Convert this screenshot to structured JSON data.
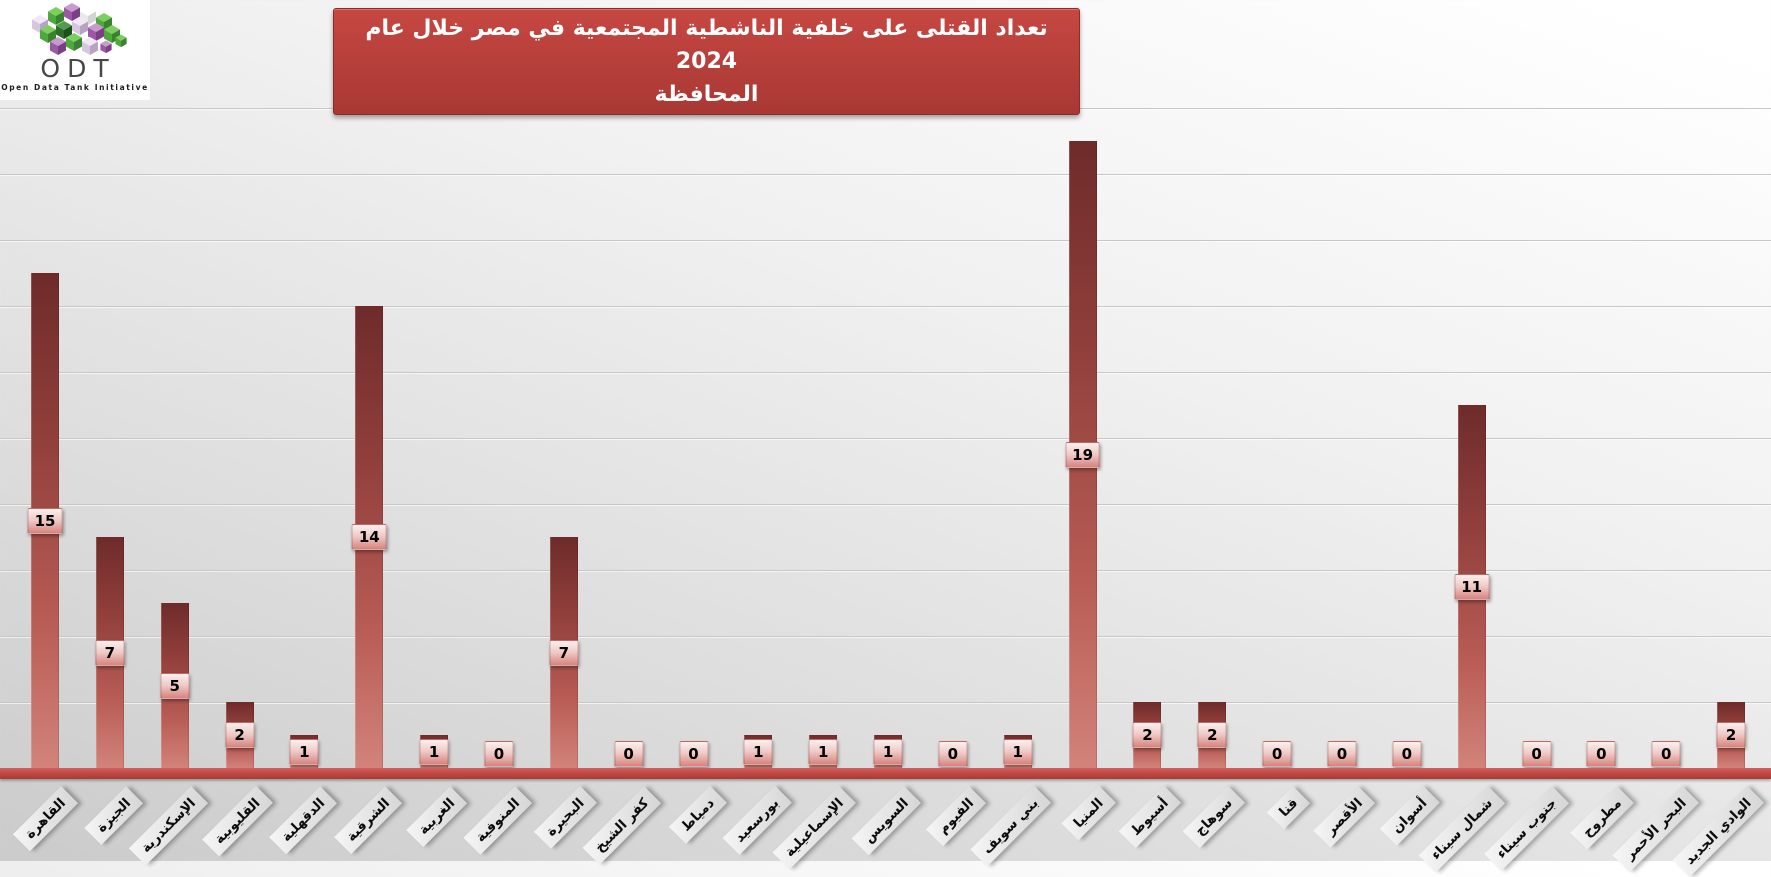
{
  "logo": {
    "text": "ODT",
    "tagline": "Open Data Tank Initiative"
  },
  "title": {
    "line1": "تعداد القتلى على خلفية الناشطية المجتمعية في مصر خلال عام 2024",
    "line2": "المحافظة"
  },
  "colors": {
    "title_bg_top": "#c64742",
    "title_bg_bottom": "#a83833",
    "bar_top": "#6e2b2a",
    "bar_bottom": "#d2837a",
    "axis_band": "#c24945",
    "label_box_top": "#faf0ef",
    "label_box_bottom": "#d8837e",
    "gridline": "#c7c7c7"
  },
  "chart_data": {
    "type": "bar",
    "title": "تعداد القتلى على خلفية الناشطية المجتمعية في مصر خلال عام 2024",
    "xlabel": "المحافظة",
    "ylabel": "",
    "categories": [
      "القاهرة",
      "الجيزة",
      "الإسكندرية",
      "القليوبية",
      "الدقهلية",
      "الشرقية",
      "الغربية",
      "المنوفية",
      "البحيرة",
      "كفر الشيخ",
      "دمياط",
      "بورسعيد",
      "الإسماعيلية",
      "السويس",
      "الفيوم",
      "بني سويف",
      "المنيا",
      "أسيوط",
      "سوهاج",
      "قنا",
      "الأقصر",
      "أسوان",
      "شمال سيناء",
      "جنوب سيناء",
      "مطروح",
      "البحر الأحمر",
      "الوادي الجديد"
    ],
    "values": [
      15,
      7,
      5,
      2,
      1,
      14,
      1,
      0,
      7,
      0,
      0,
      1,
      1,
      1,
      0,
      1,
      19,
      2,
      2,
      0,
      0,
      0,
      11,
      0,
      0,
      0,
      2
    ],
    "ylim": [
      0,
      20
    ],
    "gridlines": "horizontal, every 2 units, no y tick labels",
    "legend": false,
    "value_labels": "each bar labeled with its value, centered on bar",
    "bar_direction": "vertical",
    "x_labels_rotation_deg": -45
  }
}
